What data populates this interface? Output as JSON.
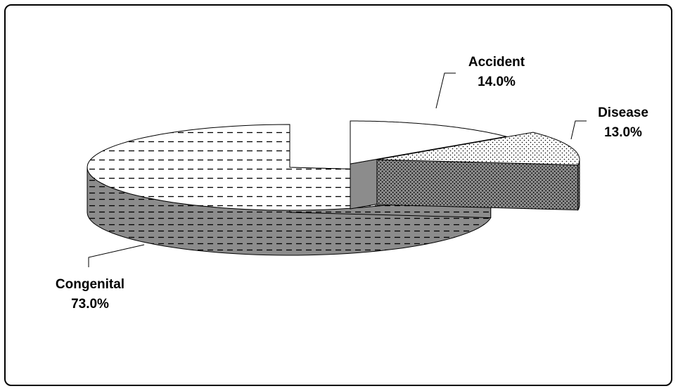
{
  "chart_data": {
    "type": "pie",
    "style": "3d-exploded",
    "title": "",
    "slices": [
      {
        "name": "Accident",
        "value": 14.0,
        "label_value": "14.0%",
        "pattern": "none"
      },
      {
        "name": "Disease",
        "value": 13.0,
        "label_value": "13.0%",
        "pattern": "dots"
      },
      {
        "name": "Congenital",
        "value": 73.0,
        "label_value": "73.0%",
        "pattern": "dashes"
      }
    ],
    "colors": {
      "top": "#ffffff",
      "side": "#8c8c8c",
      "outline": "#000000"
    },
    "legend": "none"
  }
}
